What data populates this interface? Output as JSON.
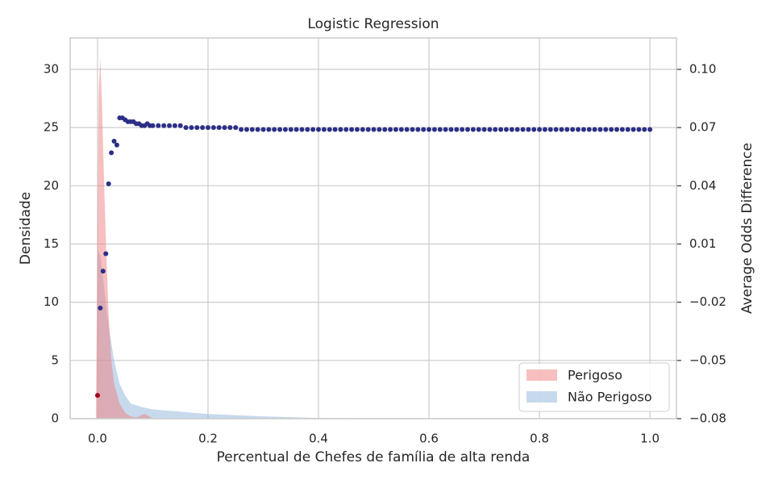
{
  "chart_data": {
    "type": "density_scatter",
    "title": "Logistic Regression",
    "xlabel": "Percentual de Chefes de família de alta renda",
    "ylabel": "Densidade",
    "y2label": "Average Odds Difference",
    "xlim": [
      -0.0496,
      1.048
    ],
    "ylim": [
      0,
      32.7
    ],
    "y2lim": [
      -0.08,
      0.1162
    ],
    "xticks": [
      {
        "value": 0,
        "label": "0.0"
      },
      0.2,
      0.4,
      0.6,
      0.8,
      {
        "value": 1,
        "label": "1.0"
      }
    ],
    "yticks": [
      0,
      5,
      10,
      15,
      20,
      25,
      30
    ],
    "y2ticks": [
      {
        "value": 0.1,
        "label": "0.10"
      },
      0.07,
      0.04,
      0.01,
      {
        "value": -0.02,
        "label": "−0.02"
      },
      {
        "value": -0.05,
        "label": "−0.05"
      },
      {
        "value": -0.08,
        "label": "−0.08"
      }
    ],
    "grid": true,
    "legend": "lower right",
    "series": [
      {
        "name": "Perigoso",
        "color": "#f08080",
        "x": [
          -0.003,
          0.002,
          0.005,
          0.008,
          0.012,
          0.016,
          0.02,
          0.025,
          0.03,
          0.04,
          0.05,
          0.06,
          0.07,
          0.08,
          0.085,
          0.09,
          0.1
        ],
        "values": [
          0,
          28,
          31,
          27,
          20,
          14,
          9,
          5,
          3,
          1.3,
          0.5,
          0.2,
          0.1,
          0.3,
          0.4,
          0.3,
          0
        ]
      },
      {
        "name": "Não Perigoso",
        "color": "#8fb4dc",
        "x": [
          0,
          0.005,
          0.01,
          0.02,
          0.03,
          0.04,
          0.05,
          0.06,
          0.08,
          0.1,
          0.15,
          0.2,
          0.3,
          0.4,
          0.5,
          0.6
        ],
        "values": [
          14.5,
          14,
          12,
          8,
          5,
          3,
          2,
          1.3,
          1,
          0.8,
          0.6,
          0.4,
          0.2,
          0.06,
          0.02,
          0
        ]
      }
    ],
    "points": [
      {
        "color": "#a50021",
        "x": [
          0
        ],
        "values": [
          -0.068
        ]
      },
      {
        "color": "#2c2f86",
        "x": [
          0.005,
          0.01,
          0.015,
          0.02,
          0.025,
          0.03,
          0.035,
          0.04,
          0.045,
          0.05,
          0.055,
          0.06,
          0.065,
          0.07,
          0.075,
          0.08,
          0.085,
          0.09,
          0.095,
          0.1,
          0.11,
          0.12,
          0.13,
          0.14,
          0.15,
          0.16,
          0.17,
          0.18,
          0.19,
          0.2,
          0.21,
          0.22,
          0.23,
          0.24,
          0.25,
          0.26,
          0.27,
          0.28,
          0.29,
          0.3,
          0.31,
          0.32,
          0.33,
          0.34,
          0.35,
          0.36,
          0.37,
          0.38,
          0.39,
          0.4,
          0.41,
          0.42,
          0.43,
          0.44,
          0.45,
          0.46,
          0.47,
          0.48,
          0.49,
          0.5,
          0.51,
          0.52,
          0.53,
          0.54,
          0.55,
          0.56,
          0.57,
          0.58,
          0.59,
          0.6,
          0.61,
          0.62,
          0.63,
          0.64,
          0.65,
          0.66,
          0.67,
          0.68,
          0.69,
          0.7,
          0.71,
          0.72,
          0.73,
          0.74,
          0.75,
          0.76,
          0.77,
          0.78,
          0.79,
          0.8,
          0.81,
          0.82,
          0.83,
          0.84,
          0.85,
          0.86,
          0.87,
          0.88,
          0.89,
          0.9,
          0.91,
          0.92,
          0.93,
          0.94,
          0.95,
          0.96,
          0.97,
          0.98,
          0.99,
          1.0
        ],
        "values": [
          -0.023,
          -0.004,
          0.005,
          0.041,
          0.057,
          0.063,
          0.061,
          0.075,
          0.075,
          0.074,
          0.073,
          0.073,
          0.073,
          0.072,
          0.072,
          0.071,
          0.071,
          0.072,
          0.071,
          0.071,
          0.071,
          0.071,
          0.071,
          0.071,
          0.071,
          0.07,
          0.07,
          0.07,
          0.07,
          0.07,
          0.07,
          0.07,
          0.07,
          0.07,
          0.07,
          0.069,
          0.069,
          0.069,
          0.069,
          0.069,
          0.069,
          0.069,
          0.069,
          0.069,
          0.069,
          0.069,
          0.069,
          0.069,
          0.069,
          0.069,
          0.069,
          0.069,
          0.069,
          0.069,
          0.069,
          0.069,
          0.069,
          0.069,
          0.069,
          0.069,
          0.069,
          0.069,
          0.069,
          0.069,
          0.069,
          0.069,
          0.069,
          0.069,
          0.069,
          0.069,
          0.069,
          0.069,
          0.069,
          0.069,
          0.069,
          0.069,
          0.069,
          0.069,
          0.069,
          0.069,
          0.069,
          0.069,
          0.069,
          0.069,
          0.069,
          0.069,
          0.069,
          0.069,
          0.069,
          0.069,
          0.069,
          0.069,
          0.069,
          0.069,
          0.069,
          0.069,
          0.069,
          0.069,
          0.069,
          0.069,
          0.069,
          0.069,
          0.069,
          0.069,
          0.069,
          0.069,
          0.069,
          0.069,
          0.069,
          0.069
        ]
      }
    ]
  }
}
